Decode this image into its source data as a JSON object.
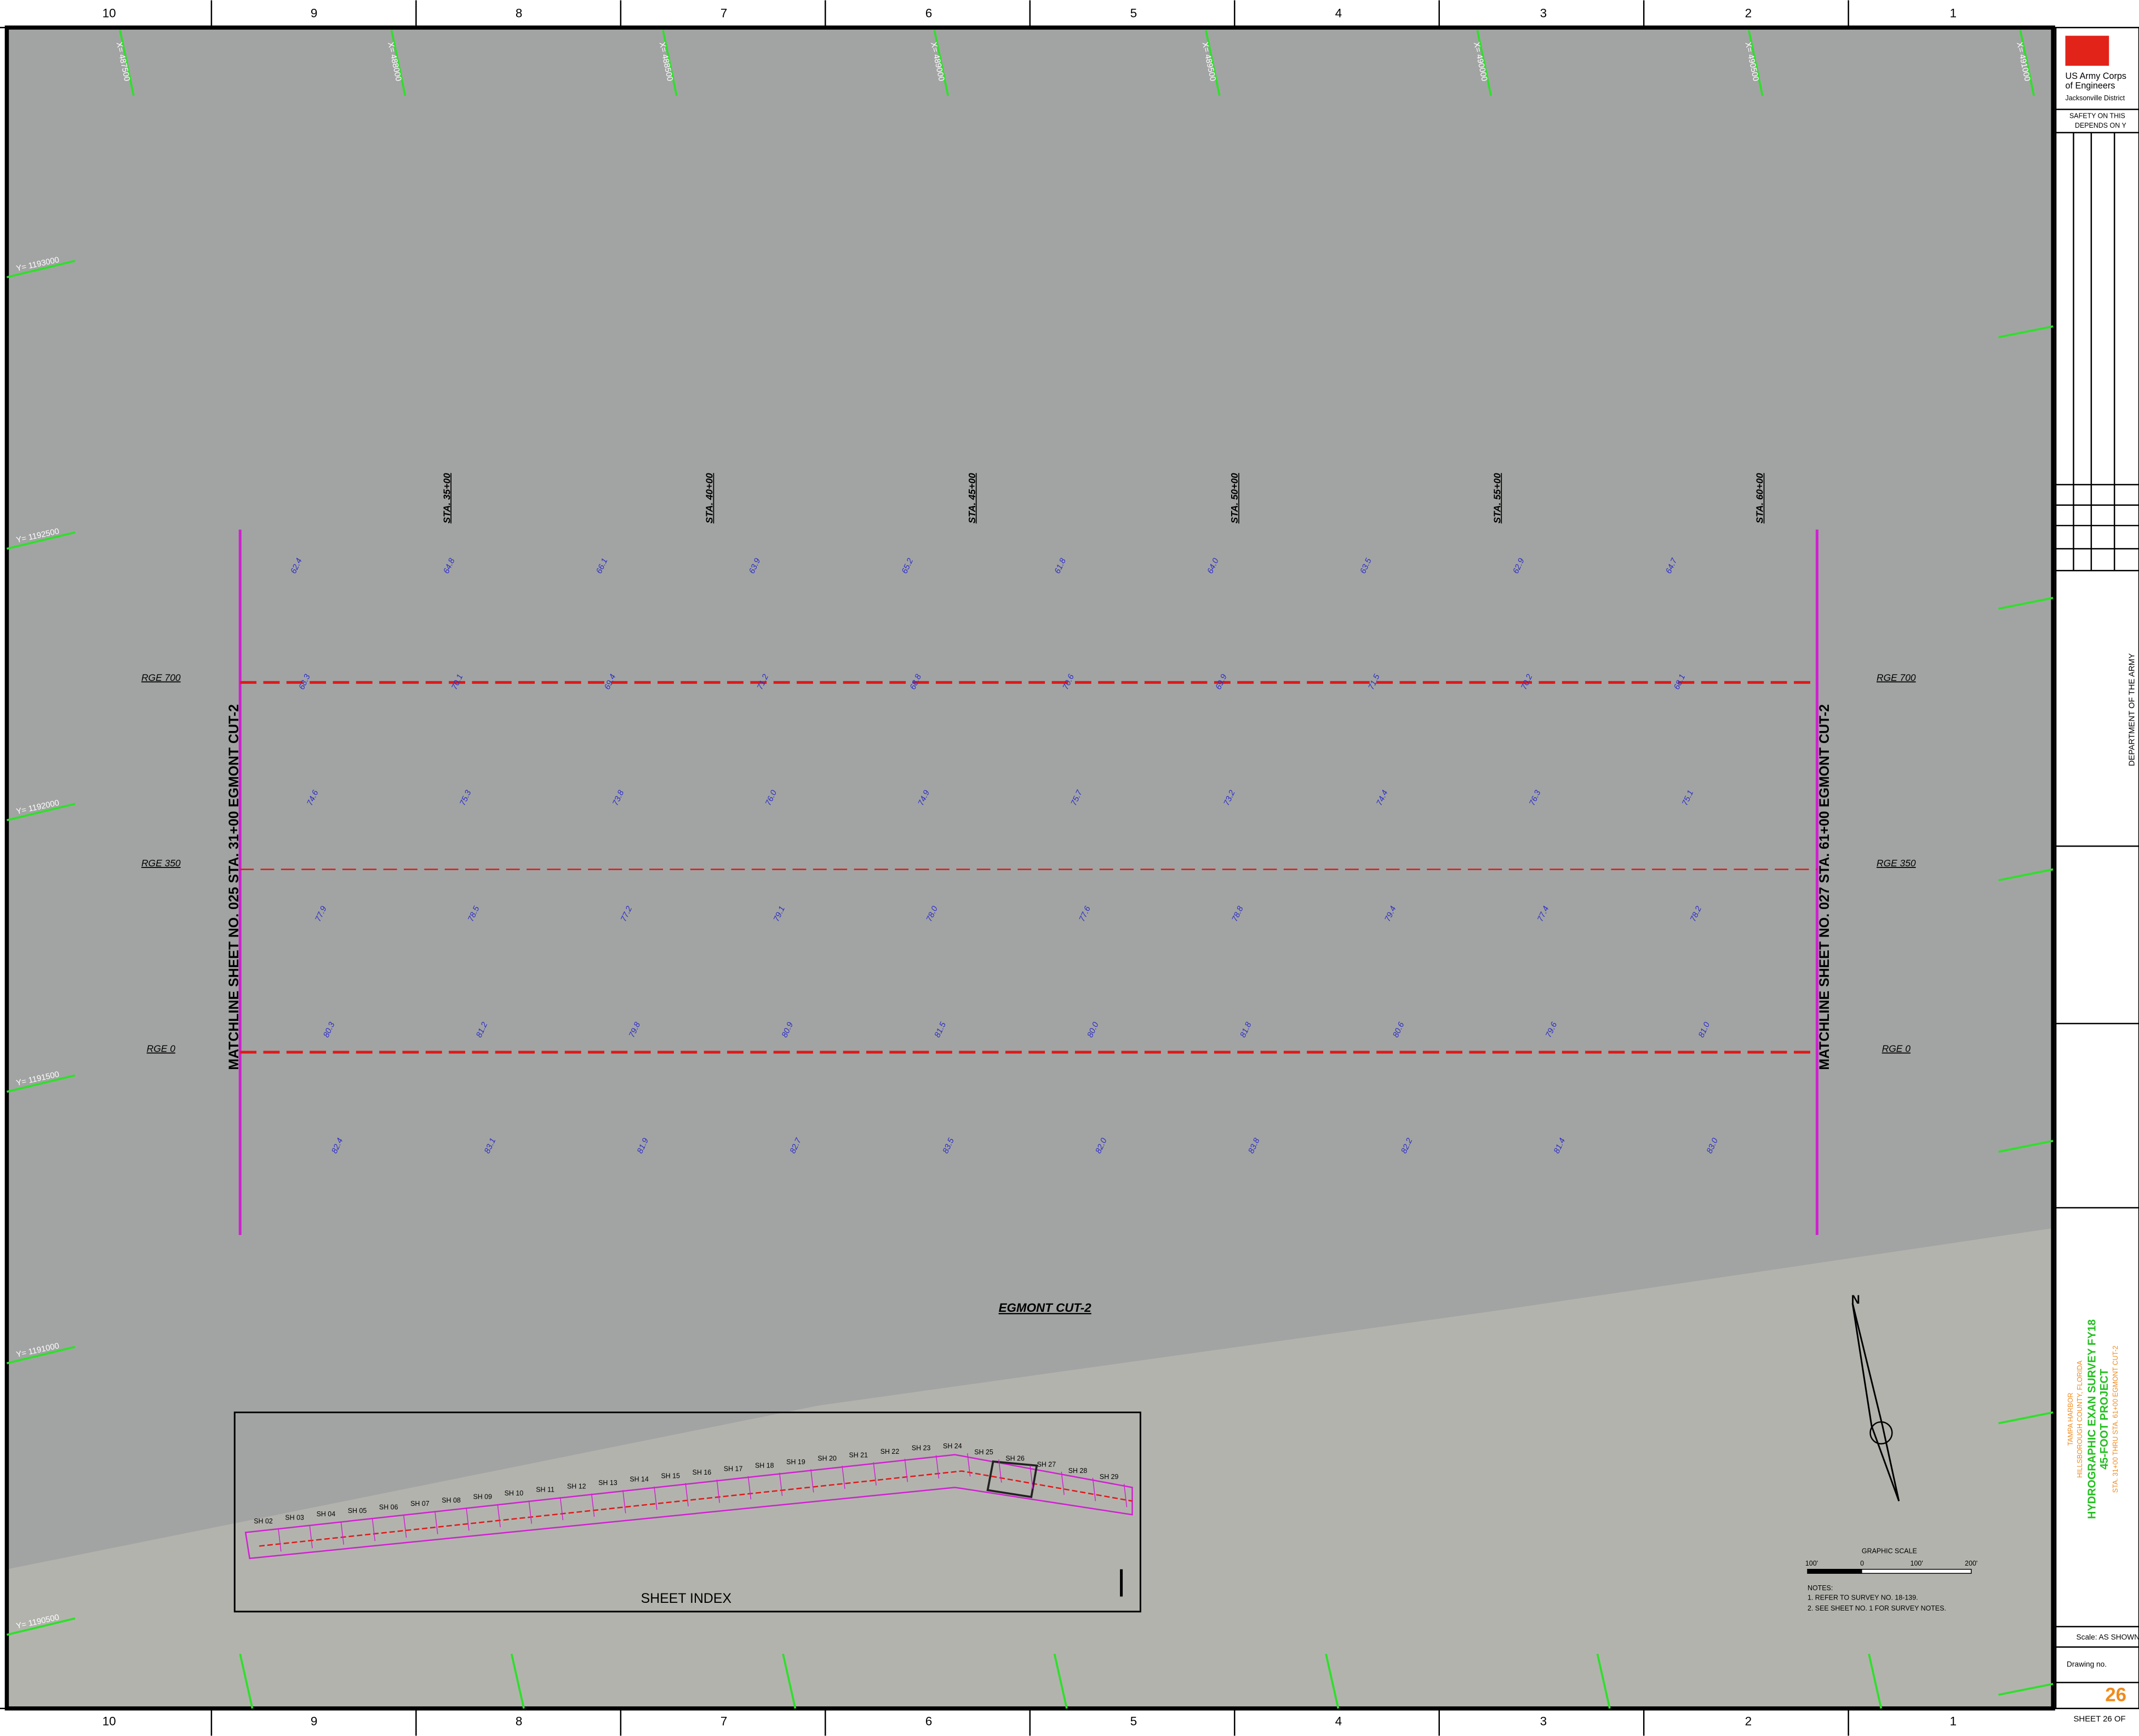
{
  "border": {
    "zones": [
      "10",
      "9",
      "8",
      "7",
      "6",
      "5",
      "4",
      "3",
      "2",
      "1"
    ]
  },
  "grid_labels": {
    "y": [
      "Y= 1193000",
      "Y= 1192500",
      "Y= 1192000",
      "Y= 1191500",
      "Y= 1191000",
      "Y= 1190500"
    ],
    "x": [
      "X= 487500",
      "X= 488000",
      "X= 488500",
      "X= 489000",
      "X= 489500",
      "X= 490000",
      "X= 490500",
      "X= 491000"
    ]
  },
  "plan": {
    "stations": [
      "STA. 35+00",
      "STA. 40+00",
      "STA. 45+00",
      "STA. 50+00",
      "STA. 55+00",
      "STA. 60+00"
    ],
    "ranges": [
      "RGE 700",
      "RGE 350",
      "RGE 0"
    ],
    "matchline_left": "MATCHLINE SHEET NO. 025 STA. 31+00 EGMONT CUT-2",
    "matchline_right": "MATCHLINE SHEET NO. 027 STA. 61+00 EGMONT CUT-2",
    "channel_name": "EGMONT CUT-2",
    "soundings": [
      "62.4",
      "64.8",
      "66.1",
      "63.9",
      "65.2",
      "61.8",
      "64.0",
      "63.5",
      "62.9",
      "64.7",
      "68.3",
      "70.1",
      "69.4",
      "71.2",
      "68.8",
      "70.6",
      "69.9",
      "71.5",
      "70.2",
      "68.1",
      "74.6",
      "75.3",
      "73.8",
      "76.0",
      "74.9",
      "75.7",
      "73.2",
      "74.4",
      "76.3",
      "75.1",
      "77.9",
      "78.5",
      "77.2",
      "79.1",
      "78.0",
      "77.6",
      "78.8",
      "79.4",
      "77.4",
      "78.2",
      "80.3",
      "81.2",
      "79.8",
      "80.9",
      "81.5",
      "80.0",
      "81.8",
      "80.6",
      "79.6",
      "81.0",
      "82.4",
      "83.1",
      "81.9",
      "82.7",
      "83.5",
      "82.0",
      "83.8",
      "82.2",
      "81.4",
      "83.0"
    ]
  },
  "sheet_index": {
    "title": "SHEET INDEX",
    "sheets": [
      "SH 02",
      "SH 03",
      "SH 04",
      "SH 05",
      "SH 06",
      "SH 07",
      "SH 08",
      "SH 09",
      "SH 10",
      "SH 11",
      "SH 12",
      "SH 13",
      "SH 14",
      "SH 15",
      "SH 16",
      "SH 17",
      "SH 18",
      "SH 19",
      "SH 20",
      "SH 21",
      "SH 22",
      "SH 23",
      "SH 24",
      "SH 25",
      "SH 26",
      "SH 27",
      "SH 28",
      "SH 29"
    ]
  },
  "scale": {
    "title": "GRAPHIC SCALE",
    "labels": [
      "100'",
      "0",
      "100'",
      "200'"
    ]
  },
  "notes": {
    "heading": "NOTES:",
    "items": [
      "1. REFER TO SURVEY NO. 18-139.",
      "2. SEE SHEET NO. 1 FOR SURVEY NOTES."
    ]
  },
  "title_block": {
    "agency": "US Army Corps",
    "agency2": "of Engineers",
    "district": "Jacksonville District",
    "safety": "SAFETY ON THIS",
    "safety2": "DEPENDS ON Y",
    "department": "DEPARTMENT OF THE ARMY",
    "project": "TAMPA HARBOR",
    "county": "HILLSBOROUGH COUNTY, FLORIDA",
    "title": "HYDROGRAPHIC EXAN SURVEY FY18",
    "subtitle": "45-FOOT PROJECT",
    "stations": "STA. 31+00 THRU STA. 61+00 EGMONT CUT-2",
    "scale": "Scale:  AS SHOWN",
    "drawing_label": "Drawing no.",
    "drawing_no": "26",
    "sheet": "SHEET  26  OF"
  }
}
